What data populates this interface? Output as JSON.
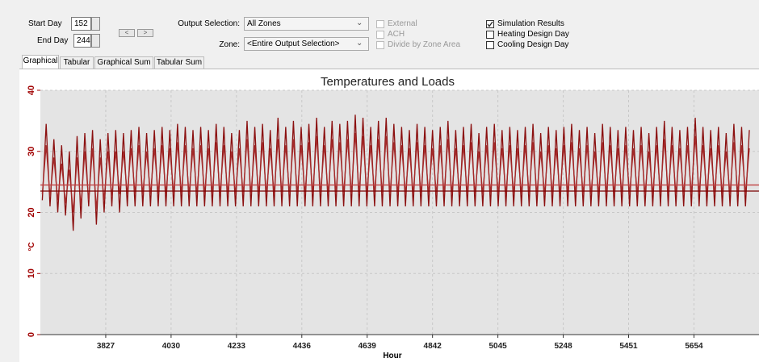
{
  "controls": {
    "start_day": {
      "label": "Start Day",
      "value": "152"
    },
    "end_day": {
      "label": "End Day",
      "value": "244"
    },
    "nav": [
      "<",
      ">"
    ],
    "output_selection": {
      "label": "Output Selection:",
      "value": "All Zones"
    },
    "zone": {
      "label": "Zone:",
      "value": "<Entire Output Selection>"
    },
    "checkboxes": [
      {
        "label": "External",
        "checked": false,
        "disabled": true
      },
      {
        "label": "ACH",
        "checked": false,
        "disabled": true
      },
      {
        "label": "Divide by Zone Area",
        "checked": false,
        "disabled": true
      },
      {
        "label": "Simulation Results",
        "checked": true,
        "disabled": false
      },
      {
        "label": "Heating Design Day",
        "checked": false,
        "disabled": false
      },
      {
        "label": "Cooling Design Day",
        "checked": false,
        "disabled": false
      }
    ]
  },
  "tabs": [
    "Graphical",
    "Tabular",
    "Graphical Sum",
    "Tabular Sum"
  ],
  "chart_data": {
    "type": "line",
    "title": "Temperatures and Loads",
    "x_label": "Hour",
    "y_label": "°C",
    "xlim": [
      3624,
      5856
    ],
    "xticks": [
      3827,
      4030,
      4233,
      4436,
      4639,
      4842,
      5045,
      5248,
      5451,
      5654
    ],
    "ylim": [
      0,
      40
    ],
    "yticks": [
      0,
      10,
      20,
      30,
      40
    ],
    "grid": true,
    "x": [
      3630,
      3642,
      3654,
      3666,
      3678,
      3690,
      3702,
      3714,
      3726,
      3738,
      3750,
      3762,
      3774,
      3786,
      3798,
      3810,
      3822,
      3834,
      3846,
      3858,
      3870,
      3882,
      3894,
      3906,
      3918,
      3930,
      3942,
      3954,
      3966,
      3978,
      3990,
      4002,
      4014,
      4026,
      4038,
      4050,
      4062,
      4074,
      4086,
      4098,
      4110,
      4122,
      4134,
      4146,
      4158,
      4170,
      4182,
      4194,
      4206,
      4218,
      4230,
      4242,
      4254,
      4266,
      4278,
      4290,
      4302,
      4314,
      4326,
      4338,
      4350,
      4362,
      4374,
      4386,
      4398,
      4410,
      4422,
      4434,
      4446,
      4458,
      4470,
      4482,
      4494,
      4506,
      4518,
      4530,
      4542,
      4554,
      4566,
      4578,
      4590,
      4602,
      4614,
      4626,
      4638,
      4650,
      4662,
      4674,
      4686,
      4698,
      4710,
      4722,
      4734,
      4746,
      4758,
      4770,
      4782,
      4794,
      4806,
      4818,
      4830,
      4842,
      4854,
      4866,
      4878,
      4890,
      4902,
      4914,
      4926,
      4938,
      4950,
      4962,
      4974,
      4986,
      4998,
      5010,
      5022,
      5034,
      5046,
      5058,
      5070,
      5082,
      5094,
      5106,
      5118,
      5130,
      5142,
      5154,
      5166,
      5178,
      5190,
      5202,
      5214,
      5226,
      5238,
      5250,
      5262,
      5274,
      5286,
      5298,
      5310,
      5322,
      5334,
      5346,
      5358,
      5370,
      5382,
      5394,
      5406,
      5418,
      5430,
      5442,
      5454,
      5466,
      5478,
      5490,
      5502,
      5514,
      5526,
      5538,
      5550,
      5562,
      5574,
      5586,
      5598,
      5610,
      5622,
      5634,
      5646,
      5658,
      5670,
      5682,
      5694,
      5706,
      5718,
      5730,
      5742,
      5754,
      5766,
      5778,
      5790,
      5802,
      5814,
      5826
    ],
    "series": [
      {
        "color": "#8b1010",
        "values": [
          22,
          34.5,
          21,
          32,
          20,
          31,
          19.5,
          30,
          17,
          32.5,
          19,
          33,
          21,
          33.5,
          18,
          32,
          20,
          33,
          21,
          33.5,
          20,
          33,
          21,
          33.5,
          21,
          34,
          21,
          33,
          21,
          33.5,
          21,
          34,
          21,
          33.5,
          21,
          34.5,
          21,
          34,
          21,
          33.5,
          21,
          34,
          21,
          33.5,
          21,
          34.5,
          21,
          34,
          21,
          33,
          21,
          33.5,
          21,
          35,
          21,
          34,
          21,
          34.5,
          21,
          33.5,
          21,
          35.5,
          21,
          34,
          21,
          35,
          21,
          34,
          21,
          34.5,
          21,
          35.5,
          21,
          34,
          21,
          35,
          21,
          34.5,
          21,
          35,
          21,
          36,
          21,
          35.5,
          21,
          34,
          21,
          35,
          21,
          35.5,
          21,
          34.5,
          21,
          34,
          21,
          33.5,
          21,
          34.5,
          21,
          34,
          21,
          33.5,
          21,
          34,
          21,
          35,
          21,
          33.5,
          21,
          34,
          21,
          34.5,
          21,
          33,
          21,
          34,
          21,
          34.5,
          21,
          33.5,
          21,
          34,
          21,
          33.5,
          21,
          34,
          21,
          34.5,
          21,
          33,
          21,
          34,
          21,
          33.5,
          21,
          34,
          21,
          34.5,
          21,
          33.5,
          21,
          34,
          21,
          33,
          21,
          34.5,
          21,
          34,
          21,
          33.5,
          21,
          34,
          21,
          33.5,
          21,
          34,
          21,
          33,
          21,
          34,
          21,
          35,
          21,
          34,
          21,
          33.5,
          21,
          34,
          21,
          35.5,
          21,
          34,
          21,
          33.5,
          21,
          34,
          21,
          33,
          21,
          34.5,
          21,
          34,
          21,
          33.5
        ]
      },
      {
        "color": "#a52a2a",
        "values": [
          23,
          31,
          22.5,
          29,
          22,
          28,
          21.5,
          27,
          20,
          29,
          21,
          30,
          22,
          30.5,
          20.5,
          29,
          22,
          30,
          22.5,
          30,
          23,
          30,
          23,
          30.5,
          23,
          31,
          23,
          30,
          23,
          30.5,
          23,
          31,
          23,
          30.5,
          23,
          31.5,
          23,
          31,
          23,
          30.5,
          23,
          31,
          23,
          30.5,
          23,
          31.5,
          23,
          31,
          23,
          30,
          23,
          30.5,
          23,
          32,
          23,
          31,
          23,
          31.5,
          23,
          30.5,
          23,
          32,
          23,
          31,
          23,
          32,
          23,
          31,
          23,
          31.5,
          23,
          32.5,
          23,
          31,
          23,
          32,
          23,
          31.5,
          23,
          32,
          23,
          33,
          23,
          32.5,
          23,
          31,
          23,
          32,
          23,
          32.5,
          23,
          31.5,
          23,
          31,
          23,
          30.5,
          23,
          31.5,
          23,
          31,
          23,
          30.5,
          23,
          31,
          23,
          32,
          23,
          30.5,
          23,
          31,
          23,
          31.5,
          23,
          30,
          23,
          31,
          23,
          31.5,
          23,
          30.5,
          23,
          31,
          23,
          30.5,
          23,
          31,
          23,
          31.5,
          23,
          30,
          23,
          31,
          23,
          30.5,
          23,
          31,
          23,
          31.5,
          23,
          30.5,
          23,
          31,
          23,
          30,
          23,
          31.5,
          23,
          31,
          23,
          30.5,
          23,
          31,
          23,
          30.5,
          23,
          31,
          23,
          30,
          23,
          31,
          23,
          32,
          23,
          31,
          23,
          30.5,
          23,
          31,
          23,
          32.5,
          23,
          31,
          23,
          30.5,
          23,
          31,
          23,
          30,
          23,
          31.5,
          23,
          31,
          23,
          30.5
        ]
      },
      {
        "color": "#7a0000",
        "x": [
          3624,
          5856
        ],
        "values": [
          23.5,
          23.5
        ]
      },
      {
        "color": "#c04040",
        "x": [
          3624,
          5856
        ],
        "values": [
          24.5,
          24.5
        ]
      }
    ]
  }
}
